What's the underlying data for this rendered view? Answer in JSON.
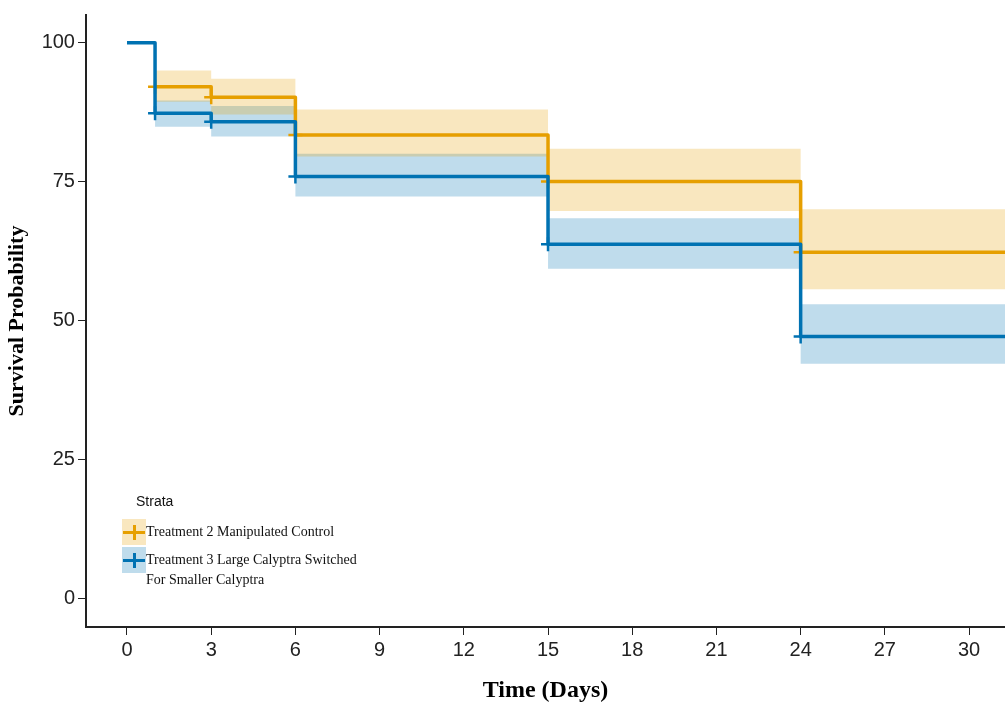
{
  "chart_data": {
    "type": "step",
    "xlabel": "Time (Days)",
    "ylabel": "Survival Probability",
    "legend_title": "Strata",
    "legend": "bottom left",
    "grid": false,
    "marker": "cross",
    "xlim": [
      -1.46,
      31.28
    ],
    "xticks": [
      0,
      3,
      6,
      9,
      12,
      15,
      18,
      21,
      24,
      27,
      30
    ],
    "ylim": [
      -5.2,
      105
    ],
    "yticks": [
      0,
      25,
      50,
      75,
      100
    ],
    "x": [
      0,
      1,
      3,
      6,
      15,
      24,
      31.28
    ],
    "series": [
      {
        "name": "Treatment  2 Manipulated  Control",
        "color": "#e69f00",
        "values": [
          null,
          92.1,
          90.2,
          83.4,
          75,
          62.3,
          62.3
        ],
        "lower": [
          null,
          89.4,
          87.1,
          79.5,
          69.7,
          55.6,
          55.6
        ],
        "upper": [
          null,
          95,
          93.5,
          88,
          80.9,
          70,
          70
        ]
      },
      {
        "name": "Treatment  3 Large Calyptra  Switched For Smaller Calyptra",
        "color": "#0072b2",
        "values": [
          100,
          87.3,
          85.8,
          75.9,
          63.7,
          47.1,
          47.1
        ],
        "lower": [
          null,
          84.9,
          83.1,
          72.3,
          59.3,
          42.2,
          42.2
        ],
        "upper": [
          null,
          89.6,
          88.6,
          80,
          68.4,
          52.9,
          52.9
        ]
      }
    ]
  }
}
